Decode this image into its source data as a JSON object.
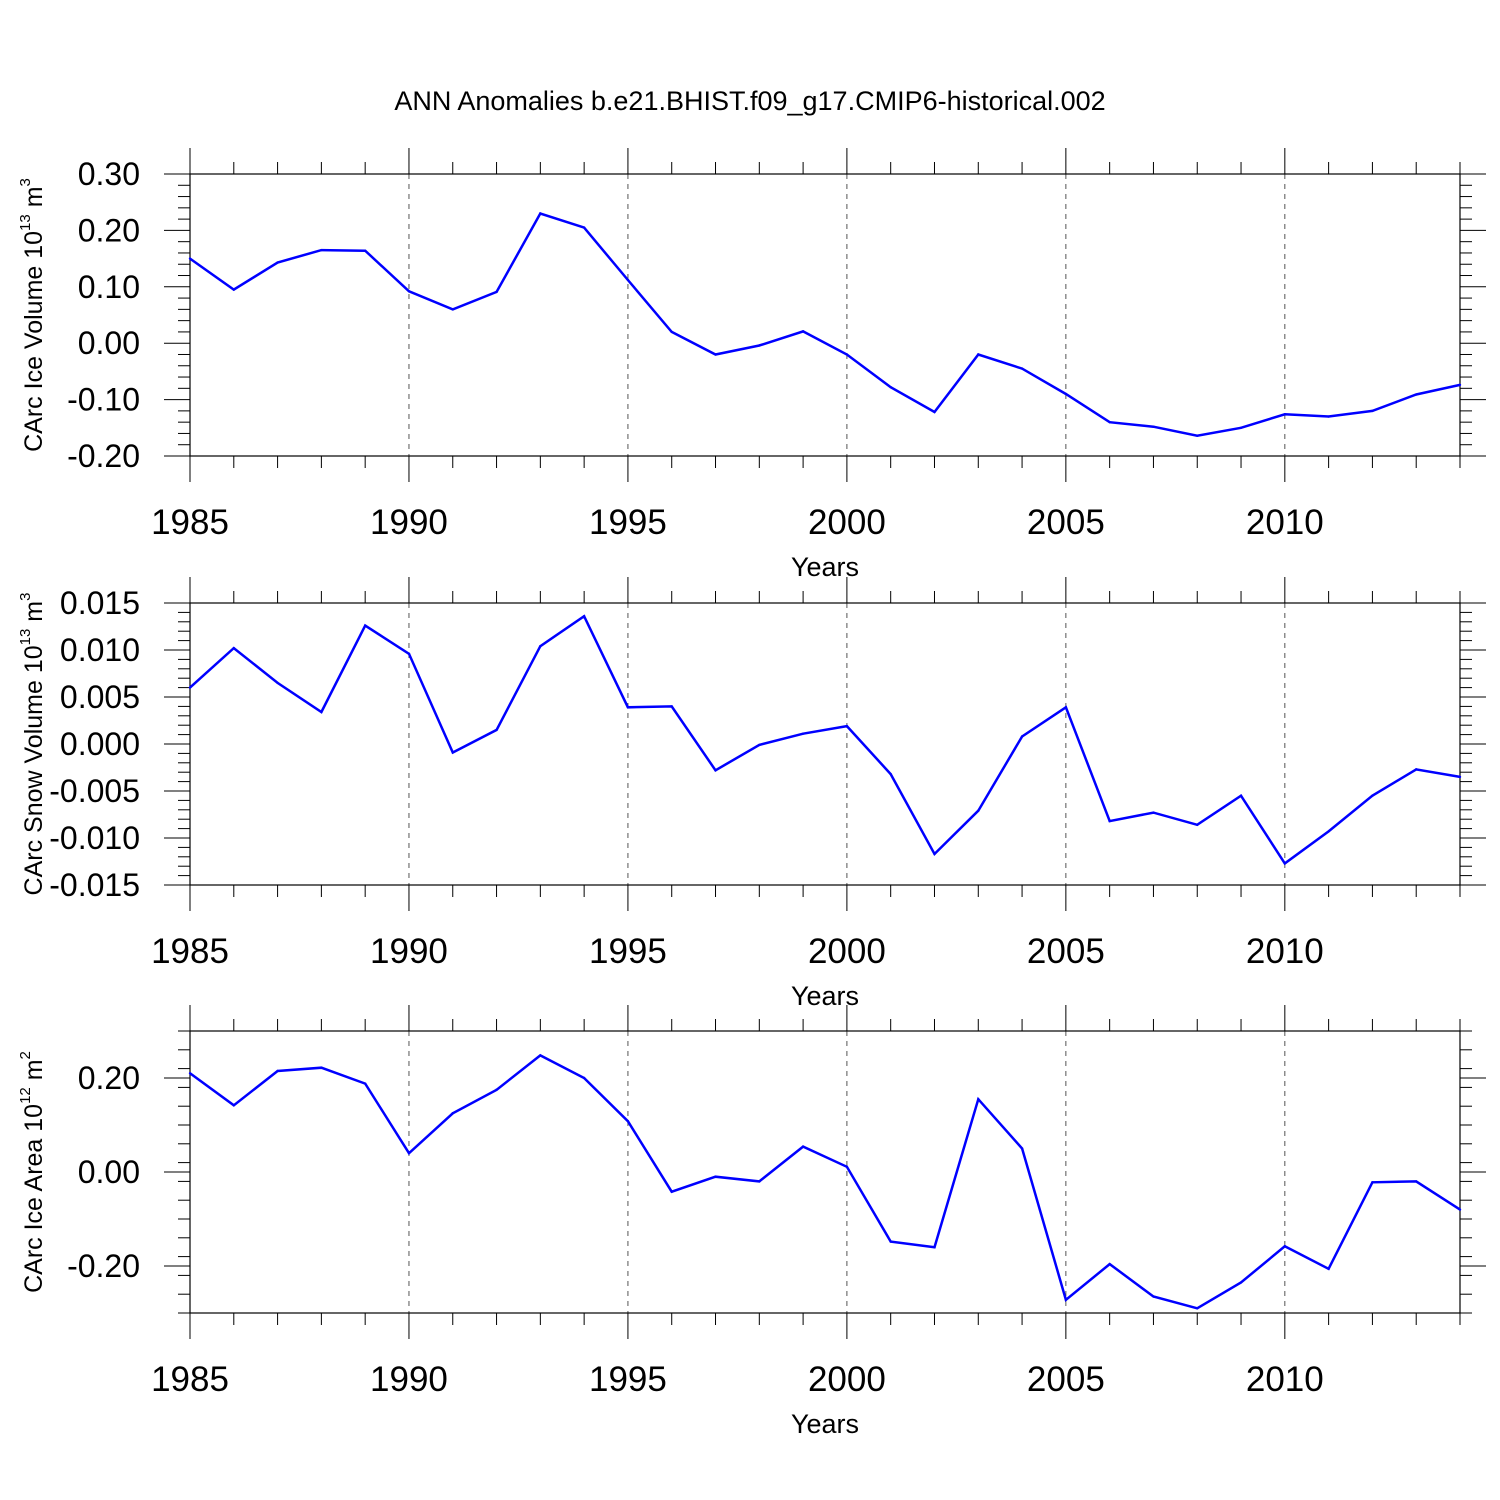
{
  "title": "ANN Anomalies b.e21.BHIST.f09_g17.CMIP6-historical.002",
  "chart_data": [
    {
      "type": "line",
      "ylabel": {
        "main": "CArc Ice Volume 10",
        "exp": "13",
        "unit": " m",
        "unit_exp": "3"
      },
      "xlabel": "Years",
      "xlim": [
        1985,
        2014
      ],
      "xticks": [
        "1985",
        "1990",
        "1995",
        "2000",
        "2005",
        "2010"
      ],
      "ylim": [
        -0.2,
        0.3
      ],
      "yticks": [
        "0.30",
        "0.20",
        "0.10",
        "0.00",
        "-0.10",
        "-0.20"
      ],
      "ytick_values": [
        0.3,
        0.2,
        0.1,
        0.0,
        -0.1,
        -0.2
      ],
      "color": "#0000ff",
      "x": [
        1985,
        1986,
        1987,
        1988,
        1989,
        1990,
        1991,
        1992,
        1993,
        1994,
        1995,
        1996,
        1997,
        1998,
        1999,
        2000,
        2001,
        2002,
        2003,
        2004,
        2005,
        2006,
        2007,
        2008,
        2009,
        2010,
        2011,
        2012,
        2013,
        2014
      ],
      "values": [
        0.15,
        0.095,
        0.143,
        0.165,
        0.164,
        0.092,
        0.06,
        0.091,
        0.23,
        0.205,
        0.112,
        0.02,
        -0.02,
        -0.004,
        0.021,
        -0.02,
        -0.078,
        -0.122,
        -0.02,
        -0.045,
        -0.09,
        -0.14,
        -0.148,
        -0.164,
        -0.15,
        -0.126,
        -0.13,
        -0.12,
        -0.091,
        -0.074
      ]
    },
    {
      "type": "line",
      "ylabel": {
        "main": "CArc Snow Volume 10",
        "exp": "13",
        "unit": " m",
        "unit_exp": "3"
      },
      "xlabel": "Years",
      "xlim": [
        1985,
        2014
      ],
      "xticks": [
        "1985",
        "1990",
        "1995",
        "2000",
        "2005",
        "2010"
      ],
      "ylim": [
        -0.015,
        0.015
      ],
      "yticks": [
        "0.015",
        "0.010",
        "0.005",
        "0.000",
        "-0.005",
        "-0.010",
        "-0.015"
      ],
      "ytick_values": [
        0.015,
        0.01,
        0.005,
        0.0,
        -0.005,
        -0.01,
        -0.015
      ],
      "color": "#0000ff",
      "x": [
        1985,
        1986,
        1987,
        1988,
        1989,
        1990,
        1991,
        1992,
        1993,
        1994,
        1995,
        1996,
        1997,
        1998,
        1999,
        2000,
        2001,
        2002,
        2003,
        2004,
        2005,
        2006,
        2007,
        2008,
        2009,
        2010,
        2011,
        2012,
        2013,
        2014
      ],
      "values": [
        0.006,
        0.0102,
        0.0065,
        0.0034,
        0.0126,
        0.0096,
        -0.0009,
        0.0015,
        0.0104,
        0.0136,
        0.0039,
        0.004,
        -0.0028,
        -0.0001,
        0.0011,
        0.0019,
        -0.0032,
        -0.0117,
        -0.0071,
        0.0008,
        0.0039,
        -0.0082,
        -0.0073,
        -0.0086,
        -0.0055,
        -0.0127,
        -0.0093,
        -0.0055,
        -0.0027,
        -0.0035
      ]
    },
    {
      "type": "line",
      "ylabel": {
        "main": "CArc Ice Area 10",
        "exp": "12",
        "unit": " m",
        "unit_exp": "2"
      },
      "xlabel": "Years",
      "xlim": [
        1985,
        2014
      ],
      "xticks": [
        "1985",
        "1990",
        "1995",
        "2000",
        "2005",
        "2010"
      ],
      "ylim": [
        -0.3,
        0.3
      ],
      "yticks": [
        "0.20",
        "0.00",
        "-0.20"
      ],
      "ytick_values": [
        0.2,
        0.0,
        -0.2
      ],
      "color": "#0000ff",
      "x": [
        1985,
        1986,
        1987,
        1988,
        1989,
        1990,
        1991,
        1992,
        1993,
        1994,
        1995,
        1996,
        1997,
        1998,
        1999,
        2000,
        2001,
        2002,
        2003,
        2004,
        2005,
        2006,
        2007,
        2008,
        2009,
        2010,
        2011,
        2012,
        2013,
        2014
      ],
      "values": [
        0.21,
        0.142,
        0.215,
        0.222,
        0.188,
        0.04,
        0.125,
        0.175,
        0.248,
        0.2,
        0.108,
        -0.042,
        -0.01,
        -0.02,
        0.054,
        0.011,
        -0.148,
        -0.16,
        0.155,
        0.05,
        -0.272,
        -0.196,
        -0.265,
        -0.29,
        -0.235,
        -0.158,
        -0.206,
        -0.022,
        -0.02,
        -0.08
      ]
    }
  ]
}
